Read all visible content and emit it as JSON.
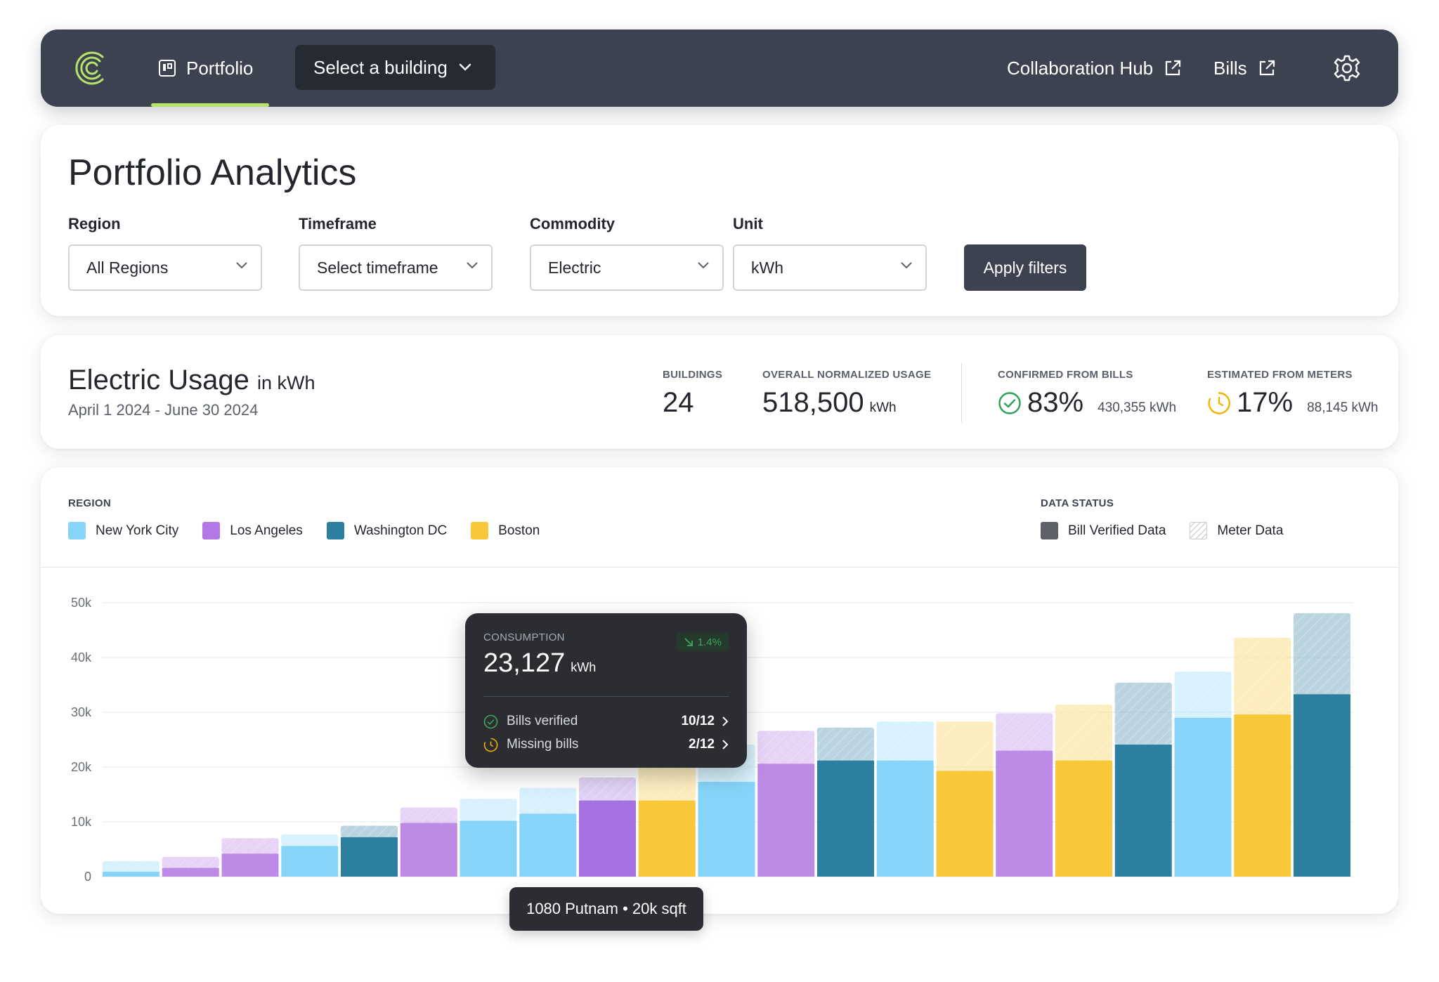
{
  "nav": {
    "tab_label": "Portfolio",
    "building_select": "Select a building",
    "collab_link": "Collaboration Hub",
    "bills_link": "Bills",
    "accent": "#b6e36b"
  },
  "filters": {
    "title": "Portfolio Analytics",
    "region": {
      "label": "Region",
      "value": "All Regions"
    },
    "timeframe": {
      "label": "Timeframe",
      "value": "Select timeframe"
    },
    "commodity": {
      "label": "Commodity",
      "value": "Electric"
    },
    "unit": {
      "label": "Unit",
      "value": "kWh"
    },
    "apply_label": "Apply filters"
  },
  "usage": {
    "title": "Electric Usage",
    "title_unit": "in kWh",
    "date_range": "April 1 2024 - June 30 2024",
    "buildings": {
      "label": "BUILDINGS",
      "value": "24"
    },
    "normalized": {
      "label": "OVERALL NORMALIZED USAGE",
      "value": "518,500",
      "unit": "kWh"
    },
    "confirmed": {
      "label": "CONFIRMED FROM BILLS",
      "value": "83%",
      "detail": "430,355 kWh"
    },
    "estimated": {
      "label": "ESTIMATED FROM METERS",
      "value": "17%",
      "detail": "88,145 kWh"
    }
  },
  "legend": {
    "region_head": "REGION",
    "status_head": "DATA STATUS",
    "regions": [
      {
        "name": "New York City",
        "color": "#86d5f8"
      },
      {
        "name": "Los Angeles",
        "color": "#b277e2"
      },
      {
        "name": "Washington DC",
        "color": "#2d7f9f"
      },
      {
        "name": "Boston",
        "color": "#f8c73a"
      }
    ],
    "statuses": [
      {
        "name": "Bill Verified Data",
        "icon": "solid-swatch"
      },
      {
        "name": "Meter Data",
        "icon": "hatched-swatch"
      }
    ]
  },
  "chart_data": {
    "type": "bar",
    "stacked": true,
    "y_ticks": [
      "0",
      "10k",
      "20k",
      "30k",
      "40k",
      "50k"
    ],
    "ylim": [
      0,
      50000
    ],
    "grid": true,
    "series": [
      {
        "name": "Bill Verified Data"
      },
      {
        "name": "Meter Data"
      }
    ],
    "bars": [
      {
        "region": "New York City",
        "verified": 900,
        "meter": 1900
      },
      {
        "region": "Los Angeles",
        "verified": 1600,
        "meter": 2000
      },
      {
        "region": "Los Angeles",
        "verified": 4200,
        "meter": 2800
      },
      {
        "region": "New York City",
        "verified": 5600,
        "meter": 2100
      },
      {
        "region": "Washington DC",
        "verified": 7200,
        "meter": 2100
      },
      {
        "region": "Los Angeles",
        "verified": 9800,
        "meter": 2800
      },
      {
        "region": "New York City",
        "verified": 10200,
        "meter": 4000
      },
      {
        "region": "New York City",
        "verified": 11500,
        "meter": 4700
      },
      {
        "region": "Los Angeles",
        "verified": 13900,
        "meter": 4200,
        "highlight": true
      },
      {
        "region": "Boston",
        "verified": 13900,
        "meter": 6500
      },
      {
        "region": "New York City",
        "verified": 17300,
        "meter": 6800
      },
      {
        "region": "Los Angeles",
        "verified": 20600,
        "meter": 6000
      },
      {
        "region": "Washington DC",
        "verified": 21200,
        "meter": 6000
      },
      {
        "region": "New York City",
        "verified": 21200,
        "meter": 7100
      },
      {
        "region": "Boston",
        "verified": 19300,
        "meter": 9000
      },
      {
        "region": "Los Angeles",
        "verified": 23000,
        "meter": 6800
      },
      {
        "region": "Boston",
        "verified": 21200,
        "meter": 10200
      },
      {
        "region": "Washington DC",
        "verified": 24100,
        "meter": 11300
      },
      {
        "region": "New York City",
        "verified": 29000,
        "meter": 8400
      },
      {
        "region": "Boston",
        "verified": 29600,
        "meter": 14000
      },
      {
        "region": "Washington DC",
        "verified": 33300,
        "meter": 14800
      }
    ]
  },
  "tooltip": {
    "label": "CONSUMPTION",
    "value": "23,127",
    "unit": "kWh",
    "change": "1.4%",
    "bills_verified_label": "Bills verified",
    "bills_verified_value": "10/12",
    "missing_bills_label": "Missing bills",
    "missing_bills_value": "2/12"
  },
  "bar_tip": "1080 Putnam • 20k sqft"
}
